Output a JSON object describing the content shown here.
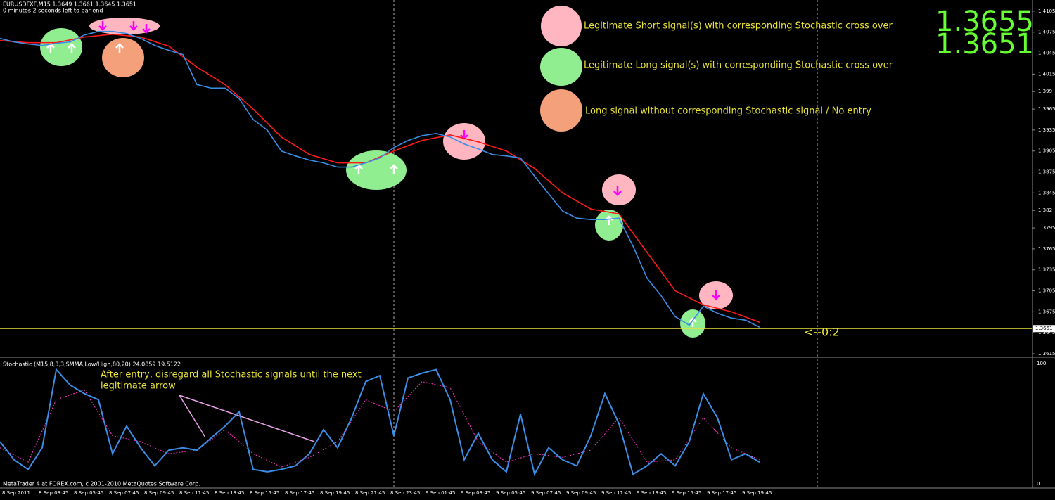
{
  "header": {
    "symbol": "EURUSDFXF,M15  1.3649 1.3661 1.3645 1.3651",
    "timer": "0 minutes 2 seconds left to bar end"
  },
  "legend": [
    {
      "text": "Legitimate Short signal(s) with corresponding Stochastic cross over"
    },
    {
      "text": "Legitimate Long signal(s) with correspondiing Stochastic cross over"
    },
    {
      "text": "Long signal without corresponding Stochastic signal  / No entry"
    }
  ],
  "quote": {
    "ask": "1.3655",
    "bid": "1.3651"
  },
  "countdown": "<--0:2",
  "price_chart": {
    "ylim": [
      1.3611,
      1.4121
    ],
    "yticks": [
      1.4105,
      1.4075,
      1.4045,
      1.4015,
      1.399,
      1.3965,
      1.3935,
      1.3905,
      1.3875,
      1.3845,
      1.382,
      1.3795,
      1.3765,
      1.3735,
      1.3705,
      1.3675,
      1.3645,
      1.3615
    ],
    "current_price": 1.3651,
    "fast_ma": [
      1.4066,
      1.4061,
      1.4058,
      1.4056,
      1.4059,
      1.4061,
      1.4071,
      1.4076,
      1.4076,
      1.4073,
      1.4066,
      1.4056,
      1.4049,
      1.4043,
      1.4,
      1.3995,
      1.3995,
      1.398,
      1.395,
      1.3935,
      1.3905,
      1.3898,
      1.3892,
      1.3888,
      1.3882,
      1.3882,
      1.3888,
      1.3895,
      1.391,
      1.392,
      1.3927,
      1.393,
      1.3925,
      1.3915,
      1.3908,
      1.39,
      1.3898,
      1.3895,
      1.3869,
      1.3844,
      1.3819,
      1.3809,
      1.3807,
      1.3807,
      1.3809,
      1.3769,
      1.3723,
      1.3698,
      1.3668,
      1.3656,
      1.3683,
      1.3673,
      1.3666,
      1.3663,
      1.3653
    ],
    "slow_ma": [
      1.4063,
      1.406,
      1.406,
      1.4068,
      1.4072,
      1.4068,
      1.4055,
      1.4025,
      1.4,
      1.3965,
      1.3925,
      1.39,
      1.3888,
      1.3888,
      1.3905,
      1.392,
      1.3928,
      1.3918,
      1.3905,
      1.388,
      1.3845,
      1.3822,
      1.3815,
      1.376,
      1.3705,
      1.3685,
      1.3675,
      1.366
    ],
    "time_labels": [
      "8 Sep 2011",
      "8 Sep 03:45",
      "8 Sep 05:45",
      "8 Sep 07:45",
      "8 Sep 09:45",
      "8 Sep 11:45",
      "8 Sep 13:45",
      "8 Sep 15:45",
      "8 Sep 17:45",
      "8 Sep 19:45",
      "8 Sep 21:45",
      "8 Sep 23:45",
      "9 Sep 01:45",
      "9 Sep 03:45",
      "9 Sep 05:45",
      "9 Sep 07:45",
      "9 Sep 09:45",
      "9 Sep 11:45",
      "9 Sep 13:45",
      "9 Sep 15:45",
      "9 Sep 17:45",
      "9 Sep 19:45"
    ]
  },
  "stochastic": {
    "label": "Stochastic (M15,8,3,3,SMMA,Low/High,80,20) 24.0859 19.5122",
    "ylim": [
      -3.5,
      103.5
    ],
    "yticks": [
      100,
      0
    ],
    "main": [
      35,
      20,
      12,
      30,
      95,
      82,
      75,
      70,
      25,
      48,
      30,
      15,
      28,
      30,
      28,
      38,
      48,
      60,
      12,
      10,
      12,
      15,
      25,
      45,
      30,
      55,
      85,
      90,
      40,
      88,
      92,
      95,
      70,
      20,
      42,
      20,
      10,
      58,
      8,
      30,
      20,
      15,
      40,
      75,
      50,
      8,
      15,
      25,
      15,
      35,
      75,
      55,
      20,
      25,
      18
    ],
    "signal": [
      30,
      18,
      70,
      78,
      40,
      35,
      25,
      28,
      45,
      25,
      14,
      22,
      35,
      70,
      60,
      85,
      80,
      35,
      18,
      25,
      22,
      28,
      55,
      18,
      20,
      55,
      30,
      20
    ],
    "note_line1": "After entry, disregard all Stochastic signals until the next",
    "note_line2": "legitimate arrow"
  },
  "footer": "MetaTrader 4 at FOREX.com, c 2001-2010 MetaQuotes Software Corp."
}
